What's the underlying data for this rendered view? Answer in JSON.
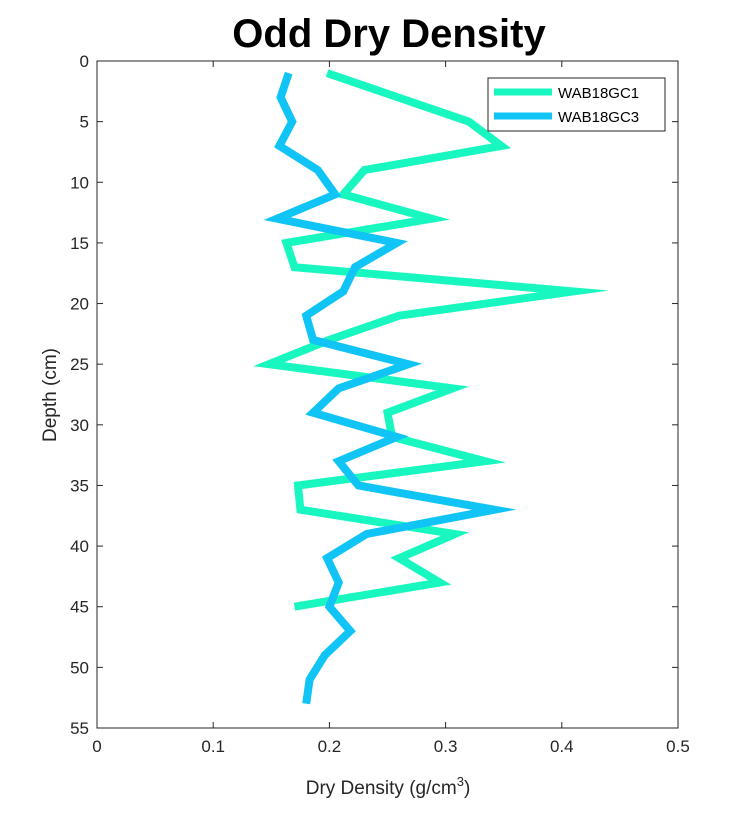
{
  "chart_data": {
    "type": "line",
    "title": "Odd Dry Density",
    "xlabel": "Dry Density (g/cm",
    "xlabel_sup": "3",
    "xlabel_end": ")",
    "ylabel": "Depth (cm)",
    "xlim": [
      0,
      0.5
    ],
    "ylim": [
      0,
      55
    ],
    "y_reversed": true,
    "xticks": [
      0,
      0.1,
      0.2,
      0.3,
      0.4,
      0.5
    ],
    "xtick_labels": [
      "0",
      "0.1",
      "0.2",
      "0.3",
      "0.4",
      "0.5"
    ],
    "yticks": [
      0,
      5,
      10,
      15,
      20,
      25,
      30,
      35,
      40,
      45,
      50,
      55
    ],
    "ytick_labels": [
      "0",
      "5",
      "10",
      "15",
      "20",
      "25",
      "30",
      "35",
      "40",
      "45",
      "50",
      "55"
    ],
    "grid": false,
    "legend_position": "top-right",
    "series": [
      {
        "name": "WAB18GC1",
        "color": "#19f7c0",
        "points": [
          [
            0.198,
            1
          ],
          [
            0.32,
            5
          ],
          [
            0.348,
            7
          ],
          [
            0.23,
            9
          ],
          [
            0.212,
            11
          ],
          [
            0.288,
            13
          ],
          [
            0.163,
            15
          ],
          [
            0.17,
            17
          ],
          [
            0.41,
            19
          ],
          [
            0.26,
            21
          ],
          [
            0.2,
            23
          ],
          [
            0.148,
            25
          ],
          [
            0.306,
            27
          ],
          [
            0.25,
            29
          ],
          [
            0.254,
            31
          ],
          [
            0.334,
            33
          ],
          [
            0.173,
            35
          ],
          [
            0.175,
            37
          ],
          [
            0.308,
            39
          ],
          [
            0.26,
            41
          ],
          [
            0.295,
            43
          ],
          [
            0.17,
            45
          ]
        ]
      },
      {
        "name": "WAB18GC3",
        "color": "#10c4f5",
        "points": [
          [
            0.165,
            1
          ],
          [
            0.158,
            3
          ],
          [
            0.168,
            5
          ],
          [
            0.157,
            7
          ],
          [
            0.19,
            9
          ],
          [
            0.205,
            11
          ],
          [
            0.155,
            13
          ],
          [
            0.258,
            15
          ],
          [
            0.222,
            17
          ],
          [
            0.212,
            19
          ],
          [
            0.18,
            21
          ],
          [
            0.186,
            23
          ],
          [
            0.268,
            25
          ],
          [
            0.208,
            27
          ],
          [
            0.186,
            29
          ],
          [
            0.258,
            31
          ],
          [
            0.208,
            33
          ],
          [
            0.225,
            35
          ],
          [
            0.342,
            37
          ],
          [
            0.232,
            39
          ],
          [
            0.198,
            41
          ],
          [
            0.208,
            43
          ],
          [
            0.2,
            45
          ],
          [
            0.218,
            47
          ],
          [
            0.196,
            49
          ],
          [
            0.183,
            51
          ],
          [
            0.18,
            53
          ]
        ]
      }
    ]
  }
}
